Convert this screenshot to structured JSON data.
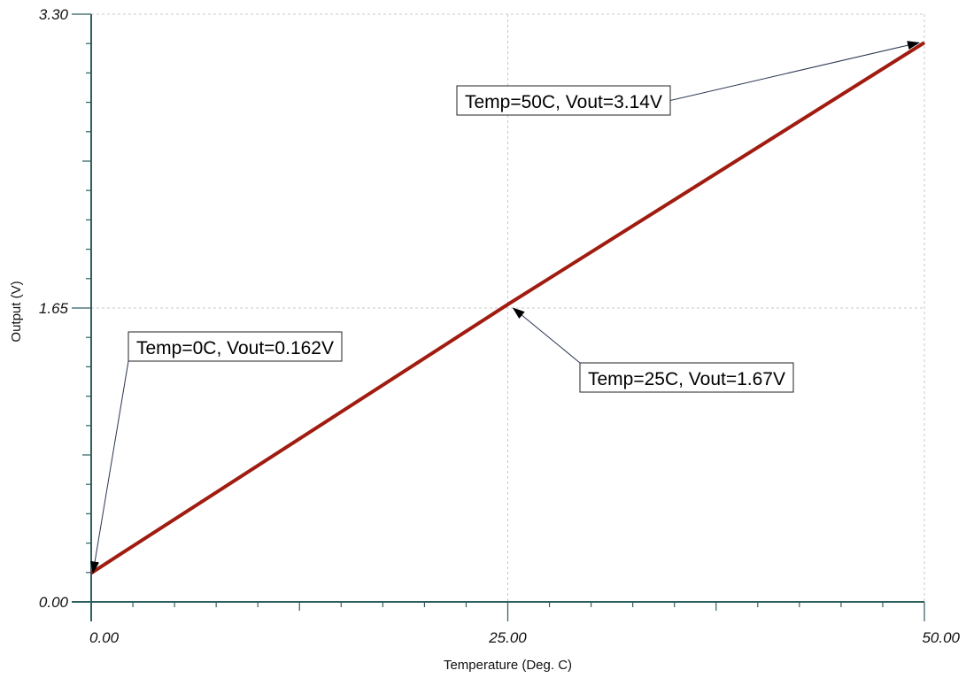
{
  "chart_data": {
    "type": "line",
    "xlabel": "Temperature (Deg. C)",
    "ylabel": "Output (V)",
    "xlim": [
      0,
      50
    ],
    "ylim": [
      0,
      3.3
    ],
    "x_ticks": [
      "0.00",
      "25.00",
      "50.00"
    ],
    "y_ticks": [
      "0.00",
      "1.65",
      "3.30"
    ],
    "grid": true,
    "series": [
      {
        "x": [
          0,
          25,
          50
        ],
        "y": [
          0.162,
          1.67,
          3.14
        ]
      }
    ],
    "annotations": [
      {
        "text": "Temp=0C, Vout=0.162V",
        "x": 0,
        "y": 0.162
      },
      {
        "text": "Temp=25C, Vout=1.67V",
        "x": 25,
        "y": 1.67
      },
      {
        "text": "Temp=50C, Vout=3.14V",
        "x": 50,
        "y": 3.14
      }
    ]
  },
  "colors": {
    "series": "#a01c10",
    "axis": "#2e5f5f",
    "grid": "#c8c8c8",
    "annotation_arrow": "#2a3550"
  }
}
